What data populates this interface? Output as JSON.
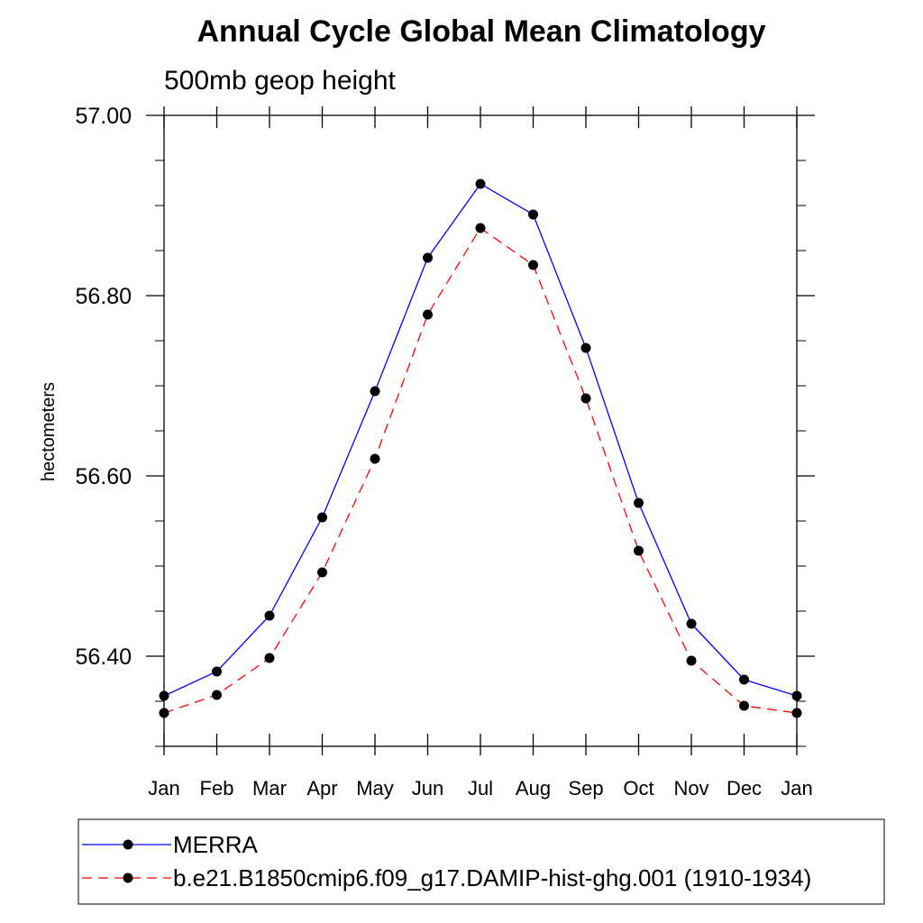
{
  "chart_data": {
    "type": "line",
    "title": "Annual Cycle Global Mean Climatology",
    "subtitle": "500mb geop height",
    "ylabel": "hectometers",
    "xlabel": "",
    "categories": [
      "Jan",
      "Feb",
      "Mar",
      "Apr",
      "May",
      "Jun",
      "Jul",
      "Aug",
      "Sep",
      "Oct",
      "Nov",
      "Dec",
      "Jan"
    ],
    "ylim": [
      56.3,
      57.0
    ],
    "yticks": [
      56.4,
      56.6,
      56.8,
      57.0
    ],
    "ytick_labels": [
      "56.40",
      "56.60",
      "56.80",
      "57.00"
    ],
    "grid": false,
    "legend_position": "bottom",
    "series": [
      {
        "name": "MERRA",
        "color": "#0000ff",
        "style": "solid",
        "values": [
          56.356,
          56.383,
          56.445,
          56.554,
          56.694,
          56.842,
          56.924,
          56.89,
          56.742,
          56.57,
          56.436,
          56.374,
          56.356
        ]
      },
      {
        "name": "b.e21.B1850cmip6.f09_g17.DAMIP-hist-ghg.001 (1910-1934)",
        "color": "#ff0000",
        "style": "dashed",
        "values": [
          56.337,
          56.357,
          56.398,
          56.493,
          56.619,
          56.779,
          56.875,
          56.834,
          56.686,
          56.517,
          56.395,
          56.345,
          56.337
        ]
      }
    ]
  }
}
